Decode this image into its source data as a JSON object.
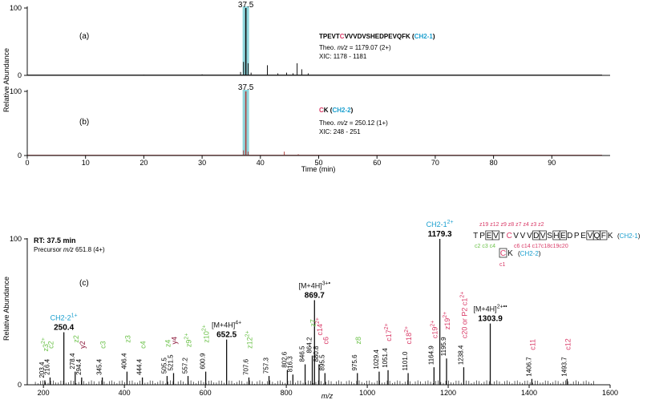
{
  "chart_data": [
    {
      "panel": "a",
      "type": "line",
      "panel_label": "(a)",
      "ylabel": "Relative Abundance",
      "ylim": [
        0,
        100
      ],
      "yticks": [
        "0",
        "100"
      ],
      "xlim": [
        0,
        100
      ],
      "peak_label": "37.5",
      "highlight_rt": 37.5,
      "peptide": {
        "pre": "TPEVT",
        "mod": "C",
        "post": "VVVDVSHEDPEVQFK",
        "tag": "CH2-1"
      },
      "theo_prefix": "Theo. ",
      "theo_mz": "m/z",
      "theo_rest": " = 1179.07 (2+)",
      "xic": "XIC: 1178 - 1181",
      "series": [
        {
          "x": [
            20,
            30,
            36.6,
            37.1,
            37.5,
            37.9,
            38.4,
            41.2,
            43,
            44.5,
            45.6,
            46.3,
            47.1,
            48.2
          ],
          "y": [
            1,
            1.5,
            5,
            20,
            100,
            18,
            4,
            15,
            3,
            4,
            3,
            18,
            9,
            3
          ]
        }
      ],
      "color": "#111111"
    },
    {
      "panel": "b",
      "type": "line",
      "panel_label": "(b)",
      "ylim": [
        0,
        100
      ],
      "yticks": [
        "0",
        "100"
      ],
      "xlim": [
        0,
        100
      ],
      "xlabel": "Time (min)",
      "xticks": [
        0,
        10,
        20,
        30,
        40,
        50,
        60,
        70,
        80,
        90
      ],
      "peak_label": "37.5",
      "highlight_rt": 37.5,
      "peptide": {
        "pre": "",
        "mod": "C",
        "post": "K",
        "tag": "CH2-2"
      },
      "theo_prefix": "Theo. ",
      "theo_mz": "m/z",
      "theo_rest": " = 250.12 (1+)",
      "xic": "XIC: 248 - 251",
      "series": [
        {
          "x": [
            37.1,
            37.5,
            37.9,
            44.1,
            46.5
          ],
          "y": [
            8,
            100,
            6,
            6,
            2
          ]
        }
      ],
      "color": "#b0413e"
    },
    {
      "panel": "c",
      "type": "bar",
      "panel_label": "(c)",
      "ylabel": "Relative Abundance",
      "xlabel": "m/z",
      "ylim": [
        0,
        100
      ],
      "yticks": [
        "0",
        "100"
      ],
      "xlim": [
        160,
        1600
      ],
      "xticks": [
        200,
        400,
        600,
        800,
        1000,
        1200,
        1400,
        1600
      ],
      "rt_label": "RT: 37.5 min",
      "precursor_prefix": "Precursor ",
      "precursor_mz": "m/z",
      "precursor_rest": " 651.8 (4+)",
      "peaks": [
        {
          "mz": 203.4,
          "i": 3
        },
        {
          "mz": 216.4,
          "i": 5
        },
        {
          "mz": 250.4,
          "i": 36
        },
        {
          "mz": 278.4,
          "i": 9
        },
        {
          "mz": 294.4,
          "i": 5
        },
        {
          "mz": 345.4,
          "i": 5
        },
        {
          "mz": 406.4,
          "i": 9
        },
        {
          "mz": 444.4,
          "i": 5
        },
        {
          "mz": 505.5,
          "i": 6
        },
        {
          "mz": 521.5,
          "i": 8
        },
        {
          "mz": 557.2,
          "i": 6
        },
        {
          "mz": 600.9,
          "i": 9
        },
        {
          "mz": 652.5,
          "i": 31
        },
        {
          "mz": 707.6,
          "i": 5
        },
        {
          "mz": 757.3,
          "i": 6
        },
        {
          "mz": 802.6,
          "i": 10
        },
        {
          "mz": 816.3,
          "i": 7
        },
        {
          "mz": 846.5,
          "i": 14
        },
        {
          "mz": 864.2,
          "i": 20
        },
        {
          "mz": 869.7,
          "i": 58
        },
        {
          "mz": 880.8,
          "i": 14
        },
        {
          "mz": 895.5,
          "i": 8
        },
        {
          "mz": 975.6,
          "i": 8
        },
        {
          "mz": 1029.4,
          "i": 9
        },
        {
          "mz": 1051.4,
          "i": 10
        },
        {
          "mz": 1101.0,
          "i": 8
        },
        {
          "mz": 1164.9,
          "i": 12
        },
        {
          "mz": 1179.3,
          "i": 100
        },
        {
          "mz": 1195.9,
          "i": 18
        },
        {
          "mz": 1238.4,
          "i": 12
        },
        {
          "mz": 1303.9,
          "i": 42
        },
        {
          "mz": 1406.7,
          "i": 4
        },
        {
          "mz": 1493.7,
          "i": 4
        }
      ],
      "labels": [
        {
          "mz": 203.4,
          "text": "203.4"
        },
        {
          "mz": 216.4,
          "text": "216.4"
        },
        {
          "mz": 278.4,
          "text": "278.4"
        },
        {
          "mz": 294.4,
          "text": "294.4"
        },
        {
          "mz": 345.4,
          "text": "345.4"
        },
        {
          "mz": 406.4,
          "text": "406.4"
        },
        {
          "mz": 444.4,
          "text": "444.4"
        },
        {
          "mz": 505.5,
          "text": "505.5"
        },
        {
          "mz": 521.5,
          "text": "521.5"
        },
        {
          "mz": 557.2,
          "text": "557.2"
        },
        {
          "mz": 600.9,
          "text": "600.9"
        },
        {
          "mz": 707.6,
          "text": "707.6"
        },
        {
          "mz": 757.3,
          "text": "757.3"
        },
        {
          "mz": 802.6,
          "text": "802.6"
        },
        {
          "mz": 816.3,
          "text": "816.3"
        },
        {
          "mz": 846.5,
          "text": "846.5"
        },
        {
          "mz": 864.2,
          "text": "864.2"
        },
        {
          "mz": 880.8,
          "text": "880.8"
        },
        {
          "mz": 895.5,
          "text": "895.5"
        },
        {
          "mz": 975.6,
          "text": "975.6"
        },
        {
          "mz": 1029.4,
          "text": "1029.4"
        },
        {
          "mz": 1051.4,
          "text": "1051.4"
        },
        {
          "mz": 1101.0,
          "text": "1101.0"
        },
        {
          "mz": 1164.9,
          "text": "1164.9"
        },
        {
          "mz": 1195.9,
          "text": "1195.9"
        },
        {
          "mz": 1238.4,
          "text": "1238.4"
        },
        {
          "mz": 1406.7,
          "text": "1406.7"
        },
        {
          "mz": 1493.7,
          "text": "1493.7"
        }
      ],
      "ions": [
        {
          "mz": 203.4,
          "text": "z3",
          "sup": "2+",
          "color": "#6cc24a"
        },
        {
          "mz": 216.4,
          "text": "c2",
          "color": "#6cc24a"
        },
        {
          "mz": 278.4,
          "text": "z2",
          "color": "#6cc24a"
        },
        {
          "mz": 294.4,
          "text": "y2",
          "color": "#8a1538"
        },
        {
          "mz": 345.4,
          "text": "c3",
          "color": "#6cc24a"
        },
        {
          "mz": 406.4,
          "text": "z3",
          "color": "#6cc24a"
        },
        {
          "mz": 444.4,
          "text": "c4",
          "color": "#6cc24a"
        },
        {
          "mz": 505.5,
          "text": "z4",
          "color": "#6cc24a"
        },
        {
          "mz": 521.5,
          "text": "y4",
          "color": "#8a1538"
        },
        {
          "mz": 557.2,
          "text": "z9",
          "sup": "2+",
          "color": "#6cc24a"
        },
        {
          "mz": 600.9,
          "text": "z10",
          "sup": "2+",
          "color": "#6cc24a"
        },
        {
          "mz": 707.6,
          "text": "z12",
          "sup": "2+",
          "color": "#6cc24a"
        },
        {
          "mz": 864.2,
          "text": "z7",
          "color": "#6cc24a"
        },
        {
          "mz": 880.8,
          "text": "c14",
          "sup": "2+",
          "color": "#d93a67"
        },
        {
          "mz": 895.5,
          "text": "c6",
          "color": "#d93a67"
        },
        {
          "mz": 975.6,
          "text": "z8",
          "color": "#6cc24a"
        },
        {
          "mz": 1051.4,
          "text": "c17",
          "sup": "2+",
          "color": "#d93a67"
        },
        {
          "mz": 1101.0,
          "text": "c18",
          "sup": "2+",
          "color": "#d93a67"
        },
        {
          "mz": 1164.9,
          "text": "c19",
          "sup": "2+",
          "color": "#d93a67"
        },
        {
          "mz": 1195.9,
          "text": "z19",
          "sup": "2+",
          "color": "#d93a67"
        },
        {
          "mz": 1238.4,
          "text": "c20 or P2 c1",
          "sup": "2+",
          "color": "#d93a67"
        },
        {
          "mz": 1406.7,
          "text": "c11",
          "color": "#d93a67"
        },
        {
          "mz": 1493.7,
          "text": "c12",
          "color": "#d93a67"
        }
      ],
      "callouts": [
        {
          "mz": 250.4,
          "name": "CH2-2",
          "charge": "1+",
          "value": "250.4"
        },
        {
          "mz": 652.5,
          "name": "[M+4H]",
          "charge": "4+",
          "value": "652.5"
        },
        {
          "mz": 869.7,
          "name": "[M+4H]",
          "charge": "3+•",
          "value": "869.7"
        },
        {
          "mz": 1179.3,
          "name": "CH2-1",
          "charge": "2+",
          "value": "1179.3"
        },
        {
          "mz": 1303.9,
          "name": "[M+4H]",
          "charge": "2+••",
          "value": "1303.9"
        }
      ],
      "sequence_1": {
        "letters": [
          "T",
          "P",
          "E",
          "V",
          "T",
          "C",
          "V",
          "V",
          "V",
          "D",
          "V",
          "S",
          "H",
          "E",
          "D",
          "P",
          "E",
          "V",
          "Q",
          "F",
          "K"
        ],
        "mod_index": 5,
        "boxed": [
          2,
          3,
          9,
          10,
          12,
          13,
          17,
          18,
          19
        ],
        "tag": "CH2-1",
        "top_ions": "z19  z12  z9 z8 z7  z4 z3 z2",
        "bottom_green": "c2 c3 c4",
        "bottom_red": "c6   c14  c17c18c19c20"
      },
      "sequence_2": {
        "letters": [
          "C",
          "K"
        ],
        "mod_index": 0,
        "tag": "CH2-2",
        "bottom": "c1"
      }
    }
  ],
  "colors": {
    "highlight": "#8fd6dc",
    "cyan": "#1a9fcf",
    "red": "#d93a67",
    "green": "#6cc24a",
    "ink": "#111111"
  }
}
